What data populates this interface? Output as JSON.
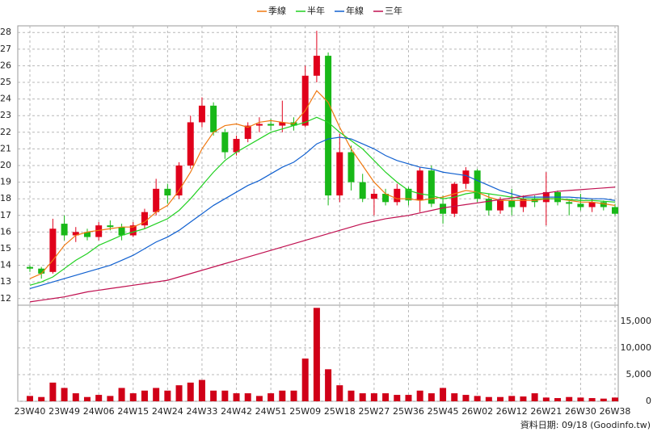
{
  "chart_data": [
    {
      "type": "candlestick",
      "open": [
        13.9,
        13.8,
        13.6,
        16.5,
        15.8,
        16.0,
        15.7,
        16.4,
        16.3,
        15.8,
        16.4,
        17.2,
        18.6,
        18.2,
        20.0,
        22.6,
        23.6,
        22.0,
        20.8,
        21.6,
        22.4,
        22.5,
        22.4,
        22.6,
        22.4,
        25.4,
        26.6,
        18.2,
        20.8,
        19.0,
        18.0,
        18.3,
        17.8,
        18.6,
        17.9,
        19.7,
        17.7,
        17.1,
        18.9,
        19.7,
        18.0,
        17.3,
        17.9,
        17.5,
        18.0,
        17.8,
        18.4,
        17.8,
        17.7,
        17.5,
        17.8,
        17.5
      ],
      "high": [
        14.0,
        13.9,
        16.8,
        17.0,
        16.3,
        16.2,
        16.6,
        16.7,
        16.5,
        16.6,
        17.4,
        19.2,
        18.9,
        20.2,
        23.0,
        24.1,
        23.8,
        22.2,
        21.8,
        22.6,
        22.9,
        22.8,
        23.9,
        22.9,
        26.0,
        28.1,
        26.8,
        21.9,
        21.2,
        19.5,
        18.6,
        18.6,
        18.9,
        18.7,
        19.9,
        20.0,
        18.2,
        19.0,
        19.9,
        19.8,
        18.3,
        18.1,
        18.6,
        18.2,
        18.2,
        19.6,
        18.5,
        18.0,
        18.3,
        18.0,
        17.9,
        17.7
      ],
      "low": [
        13.6,
        13.2,
        13.5,
        15.5,
        15.4,
        15.5,
        15.5,
        16.1,
        15.5,
        15.7,
        16.2,
        17.0,
        17.7,
        18.0,
        19.8,
        22.3,
        21.8,
        20.4,
        20.6,
        21.4,
        22.0,
        22.1,
        22.0,
        22.1,
        22.3,
        25.0,
        17.6,
        17.8,
        18.5,
        17.8,
        17.0,
        17.6,
        17.6,
        17.6,
        17.2,
        17.5,
        16.5,
        16.9,
        18.6,
        17.8,
        17.0,
        17.1,
        17.0,
        17.2,
        17.5,
        16.4,
        17.6,
        17.0,
        17.3,
        17.2,
        17.3,
        17.0
      ],
      "close": [
        13.8,
        13.5,
        16.2,
        15.8,
        16.0,
        15.7,
        16.4,
        16.3,
        15.8,
        16.4,
        17.2,
        18.6,
        18.2,
        20.0,
        22.6,
        23.6,
        22.0,
        20.8,
        21.6,
        22.4,
        22.5,
        22.4,
        22.6,
        22.4,
        25.4,
        26.6,
        18.2,
        20.8,
        19.0,
        18.0,
        18.3,
        17.8,
        18.6,
        17.9,
        19.7,
        17.7,
        17.1,
        18.9,
        19.7,
        18.0,
        17.3,
        17.9,
        17.5,
        18.0,
        17.8,
        18.4,
        17.8,
        17.7,
        17.5,
        17.8,
        17.5,
        17.1
      ],
      "up_color": "#e0001b",
      "down_color": "#18b818",
      "series": [
        {
          "name": "季線",
          "color": "#f07810",
          "values": [
            13.2,
            13.5,
            14.3,
            15.2,
            15.8,
            16.0,
            16.1,
            16.2,
            16.3,
            16.3,
            16.6,
            17.2,
            17.6,
            18.5,
            19.6,
            21,
            22,
            22.4,
            22.5,
            22.3,
            22.6,
            22.7,
            22.6,
            22.5,
            23.3,
            24.5,
            23.8,
            22.3,
            21,
            20,
            19,
            18.3,
            18,
            18,
            17.9,
            18,
            18.1,
            18.3,
            18.5,
            18.4,
            18.1,
            17.9,
            17.9,
            17.9,
            17.9,
            18.0,
            18.0,
            17.9,
            17.8,
            17.8,
            17.7,
            17.6
          ]
        },
        {
          "name": "半年",
          "color": "#20d020",
          "values": [
            12.8,
            13.0,
            13.3,
            13.8,
            14.3,
            14.7,
            15.2,
            15.5,
            15.8,
            16.0,
            16.2,
            16.5,
            16.8,
            17.3,
            18,
            18.8,
            19.6,
            20.3,
            20.8,
            21.2,
            21.6,
            22,
            22.2,
            22.4,
            22.6,
            22.9,
            22.6,
            22,
            21.5,
            21,
            20.3,
            19.6,
            19,
            18.5,
            18.3,
            18.2,
            18.0,
            18.1,
            18.3,
            18.4,
            18.3,
            18.2,
            18.1,
            18.0,
            18.0,
            18.0,
            18.0,
            17.95,
            17.9,
            17.9,
            17.85,
            17.8
          ]
        },
        {
          "name": "年線",
          "color": "#1060d0",
          "values": [
            12.6,
            12.8,
            13.0,
            13.2,
            13.4,
            13.6,
            13.8,
            14.0,
            14.3,
            14.6,
            15.0,
            15.4,
            15.7,
            16.1,
            16.6,
            17.1,
            17.6,
            18.0,
            18.4,
            18.8,
            19.1,
            19.5,
            19.9,
            20.2,
            20.7,
            21.3,
            21.6,
            21.7,
            21.6,
            21.3,
            21.0,
            20.6,
            20.3,
            20.1,
            19.9,
            19.8,
            19.6,
            19.5,
            19.4,
            19.1,
            18.8,
            18.5,
            18.3,
            18.1,
            18.1,
            18.1,
            18.1,
            18.1,
            18.05,
            18.0,
            18.0,
            17.9
          ]
        },
        {
          "name": "三年",
          "color": "#c01050",
          "values": [
            11.8,
            11.9,
            12.0,
            12.1,
            12.25,
            12.4,
            12.5,
            12.6,
            12.7,
            12.8,
            12.9,
            13.0,
            13.1,
            13.3,
            13.5,
            13.7,
            13.9,
            14.1,
            14.3,
            14.5,
            14.7,
            14.9,
            15.1,
            15.3,
            15.5,
            15.7,
            15.9,
            16.1,
            16.3,
            16.5,
            16.65,
            16.8,
            16.9,
            17.0,
            17.15,
            17.3,
            17.45,
            17.55,
            17.65,
            17.75,
            17.85,
            17.95,
            18.05,
            18.15,
            18.25,
            18.35,
            18.45,
            18.5,
            18.55,
            18.6,
            18.65,
            18.7
          ]
        }
      ],
      "ylim": [
        11.6,
        28.4
      ],
      "yticks": [
        12,
        13,
        14,
        15,
        16,
        17,
        18,
        19,
        20,
        21,
        22,
        23,
        24,
        25,
        26,
        27,
        28
      ],
      "grid": true
    },
    {
      "type": "bar",
      "categories": [
        "23W40",
        null,
        null,
        "23W49",
        null,
        null,
        "24W06",
        null,
        null,
        "24W15",
        null,
        null,
        "24W24",
        null,
        null,
        "24W33",
        null,
        null,
        "24W42",
        null,
        null,
        "24W51",
        null,
        null,
        "25W09",
        null,
        null,
        "25W18",
        null,
        null,
        "25W27",
        null,
        null,
        "25W36",
        null,
        null,
        "25W45",
        null,
        null,
        "26W02",
        null,
        null,
        "26W12",
        null,
        null,
        "26W21",
        null,
        null,
        "26W30",
        null,
        null,
        "26W38"
      ],
      "values": [
        1000,
        800,
        3500,
        2500,
        1500,
        800,
        1200,
        1000,
        2500,
        1500,
        2000,
        2500,
        2000,
        3000,
        3500,
        4000,
        2000,
        2000,
        1500,
        1500,
        1000,
        1500,
        2000,
        2000,
        8000,
        17500,
        6000,
        3000,
        2000,
        1500,
        1500,
        1500,
        1200,
        1200,
        2000,
        1500,
        2500,
        1500,
        1200,
        1000,
        800,
        800,
        1000,
        900,
        1500,
        700,
        600,
        800,
        700,
        600,
        500,
        700
      ],
      "color": "#d00018",
      "ylim": [
        0,
        18000
      ],
      "yticks": [
        0,
        {
          "value": 5000,
          "label": "5,000"
        },
        {
          "value": 10000,
          "label": "10,000"
        },
        {
          "value": 15000,
          "label": "15,000"
        }
      ],
      "grid": true
    }
  ],
  "footer": "資料日期: 09/18 (Goodinfo.tw)"
}
